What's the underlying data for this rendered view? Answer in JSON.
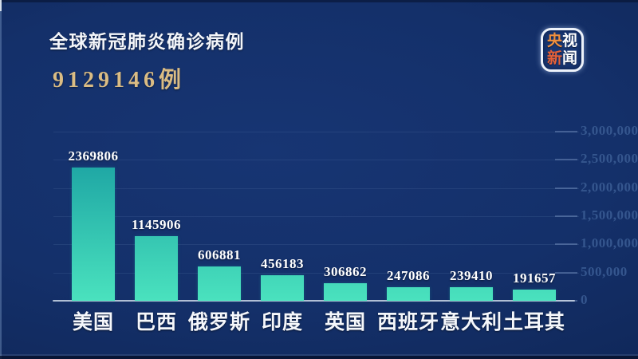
{
  "header": {
    "title": "全球新冠肺炎确诊病例",
    "total": "9129146例"
  },
  "logo": {
    "name": "央视新闻",
    "lines": [
      [
        {
          "text": "央",
          "color": "#ef8f3e"
        },
        {
          "text": "视",
          "color": "#ffffff"
        }
      ],
      [
        {
          "text": "新",
          "color": "#e4613a"
        },
        {
          "text": "闻",
          "color": "#ffffff"
        }
      ]
    ]
  },
  "chart_data": {
    "type": "bar",
    "title": "全球新冠肺炎确诊病例 9129146例",
    "categories": [
      "美国",
      "巴西",
      "俄罗斯",
      "印度",
      "英国",
      "西班牙",
      "意大利",
      "土耳其"
    ],
    "values": [
      2369806,
      1145906,
      606881,
      456183,
      306862,
      247086,
      239410,
      191657
    ],
    "value_labels": [
      "2369806",
      "1145906",
      "606881",
      "456183",
      "306862",
      "247086",
      "239410",
      "191657"
    ],
    "xlabel": "",
    "ylabel": "",
    "ylim": [
      0,
      3000000
    ],
    "y_axis_side": "right",
    "grid": true,
    "legend": false,
    "y_ticks": [
      {
        "value": 3000000,
        "label": "3,000,000"
      },
      {
        "value": 2500000,
        "label": "2,500,000"
      },
      {
        "value": 2000000,
        "label": "2,000,000"
      },
      {
        "value": 1500000,
        "label": "1,500,000"
      },
      {
        "value": 1000000,
        "label": "1,000,000"
      },
      {
        "value": 500000,
        "label": "500,000"
      },
      {
        "value": 0,
        "label": "0"
      }
    ],
    "bar_color_top": "#14989e",
    "bar_color_bottom": "#4ae2be",
    "background_color": "#14306a"
  }
}
